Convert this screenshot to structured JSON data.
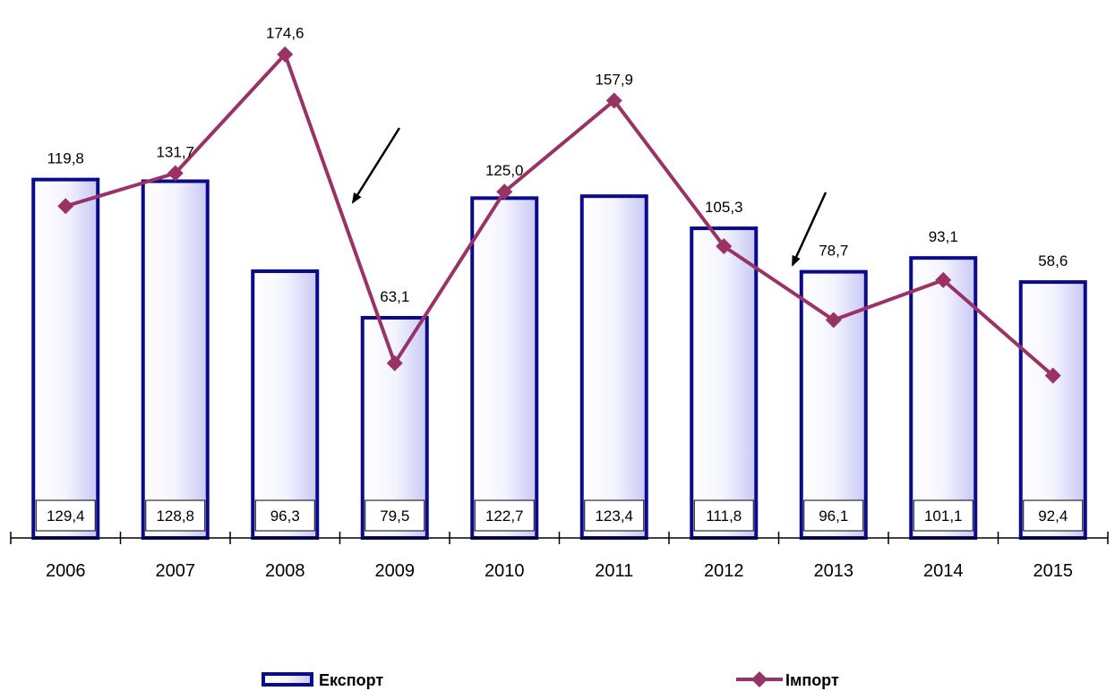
{
  "chart_data": {
    "type": "bar",
    "categories": [
      "2006",
      "2007",
      "2008",
      "2009",
      "2010",
      "2011",
      "2012",
      "2013",
      "2014",
      "2015"
    ],
    "series": [
      {
        "name": "Експорт",
        "type": "bar",
        "values": [
          129.4,
          128.8,
          96.3,
          79.5,
          122.7,
          123.4,
          111.8,
          96.1,
          101.1,
          92.4
        ],
        "value_labels": [
          "129,4",
          "128,8",
          "96,3",
          "79,5",
          "122,7",
          "123,4",
          "111,8",
          "96,1",
          "101,1",
          "92,4"
        ],
        "color": "#0a0a8c",
        "fill_gradient": [
          "#ffffff",
          "#c8c8f4"
        ]
      },
      {
        "name": "Імпорт",
        "type": "line",
        "values": [
          119.8,
          131.7,
          174.6,
          63.1,
          125.0,
          157.9,
          105.3,
          78.7,
          93.1,
          58.6
        ],
        "value_labels": [
          "119,8",
          "131,7",
          "174,6",
          "63,1",
          "125,0",
          "157,9",
          "105,3",
          "78,7",
          "93,1",
          "58,6"
        ],
        "color": "#993366",
        "marker": "diamond"
      }
    ],
    "ylim": [
      0,
      191
    ],
    "grid": false,
    "legend": {
      "position": "bottom",
      "entries": [
        "Експорт",
        "Імпорт"
      ]
    },
    "annotations": [
      {
        "type": "arrow",
        "near": "2008-2009 decline"
      },
      {
        "type": "arrow",
        "near": "2012-2013 decline"
      }
    ]
  }
}
